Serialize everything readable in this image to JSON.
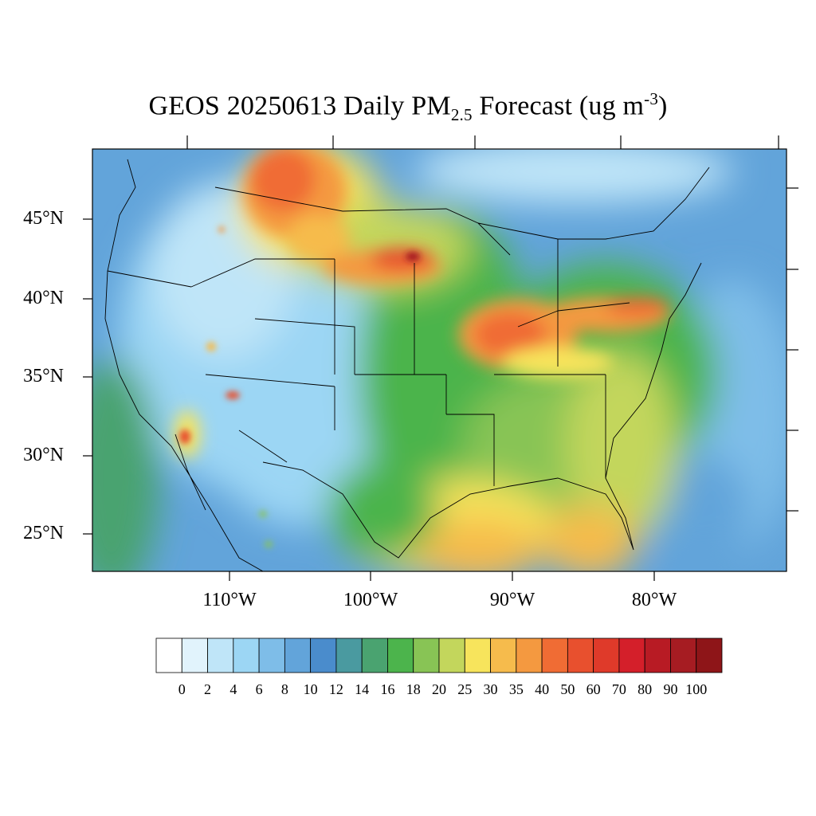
{
  "title": {
    "main": "GEOS 20250613 Daily PM",
    "sub": "2.5",
    "suffix": " Forecast (ug m",
    "sup": "-3",
    "close": ")"
  },
  "axes": {
    "lat_labels": [
      "45°N",
      "40°N",
      "35°N",
      "30°N",
      "25°N"
    ],
    "lon_labels": [
      "110°W",
      "100°W",
      "90°W",
      "80°W"
    ]
  },
  "colorbar": {
    "labels": [
      "0",
      "2",
      "4",
      "6",
      "8",
      "10",
      "12",
      "14",
      "16",
      "18",
      "20",
      "25",
      "30",
      "35",
      "40",
      "50",
      "60",
      "70",
      "80",
      "90",
      "100"
    ],
    "colors": [
      "#ffffff",
      "#e1f3fc",
      "#bfe5f8",
      "#9cd6f4",
      "#7ebde8",
      "#62a4da",
      "#4a8ccc",
      "#4a9aa0",
      "#4aa370",
      "#4cb44c",
      "#88c455",
      "#c3d65c",
      "#f7e45c",
      "#f6bb4c",
      "#f49940",
      "#f06c34",
      "#e8502e",
      "#df3a2a",
      "#d41f2a",
      "#b81b24",
      "#a61c22",
      "#8e1518"
    ]
  }
}
